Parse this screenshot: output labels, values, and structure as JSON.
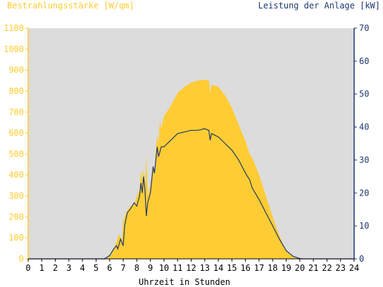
{
  "chart_data": {
    "type": "area",
    "xlabel": "Uhrzeit in Stunden",
    "x_ticks": [
      "0",
      "1",
      "2",
      "3",
      "4",
      "5",
      "6",
      "7",
      "8",
      "9",
      "10",
      "11",
      "12",
      "13",
      "14",
      "15",
      "16",
      "17",
      "18",
      "19",
      "20",
      "21",
      "22",
      "23",
      "24"
    ],
    "xlim": [
      0,
      24
    ],
    "left_axis": {
      "label": "Bestrahlungsstärke [W/qm]",
      "ticks": [
        "0",
        "100",
        "200",
        "300",
        "400",
        "500",
        "600",
        "700",
        "800",
        "900",
        "1000",
        "1100"
      ],
      "ylim": [
        0,
        1100
      ],
      "color": "#ffcc33"
    },
    "right_axis": {
      "label": "Leistung der Anlage [kW]",
      "ticks": [
        "0",
        "10",
        "20",
        "30",
        "40",
        "50",
        "60",
        "70"
      ],
      "ylim": [
        0,
        70
      ],
      "color": "#1f3870"
    },
    "plot_background": "#dcdcdc",
    "series": [
      {
        "axis": "left",
        "render": "area",
        "color": "#ffcc33",
        "points": [
          [
            0,
            0
          ],
          [
            5.5,
            0
          ],
          [
            5.8,
            3
          ],
          [
            6.0,
            15
          ],
          [
            6.3,
            50
          ],
          [
            6.5,
            80
          ],
          [
            6.7,
            120
          ],
          [
            6.9,
            90
          ],
          [
            7.0,
            180
          ],
          [
            7.2,
            220
          ],
          [
            7.5,
            250
          ],
          [
            7.8,
            260
          ],
          [
            8.0,
            300
          ],
          [
            8.2,
            330
          ],
          [
            8.3,
            420
          ],
          [
            8.4,
            380
          ],
          [
            8.5,
            430
          ],
          [
            8.6,
            350
          ],
          [
            8.7,
            500
          ],
          [
            8.8,
            300
          ],
          [
            9.0,
            350
          ],
          [
            9.2,
            450
          ],
          [
            9.3,
            400
          ],
          [
            9.4,
            520
          ],
          [
            9.5,
            590
          ],
          [
            9.6,
            550
          ],
          [
            9.7,
            660
          ],
          [
            9.8,
            620
          ],
          [
            10.0,
            680
          ],
          [
            10.2,
            700
          ],
          [
            10.5,
            730
          ],
          [
            11.0,
            790
          ],
          [
            11.5,
            820
          ],
          [
            12.0,
            840
          ],
          [
            12.5,
            850
          ],
          [
            13.0,
            855
          ],
          [
            13.3,
            850
          ],
          [
            13.4,
            790
          ],
          [
            13.5,
            830
          ],
          [
            14.0,
            820
          ],
          [
            14.5,
            780
          ],
          [
            15.0,
            720
          ],
          [
            15.5,
            640
          ],
          [
            16.0,
            560
          ],
          [
            16.3,
            500
          ],
          [
            16.5,
            480
          ],
          [
            17.0,
            400
          ],
          [
            17.5,
            300
          ],
          [
            18.0,
            200
          ],
          [
            18.5,
            110
          ],
          [
            19.0,
            40
          ],
          [
            19.5,
            10
          ],
          [
            20.0,
            2
          ],
          [
            20.3,
            0
          ],
          [
            24,
            0
          ]
        ]
      },
      {
        "axis": "right",
        "render": "line",
        "color": "#1f3870",
        "points": [
          [
            0,
            0
          ],
          [
            5.6,
            0
          ],
          [
            6.0,
            1
          ],
          [
            6.3,
            3
          ],
          [
            6.5,
            4
          ],
          [
            6.6,
            3
          ],
          [
            6.8,
            6
          ],
          [
            7.0,
            4
          ],
          [
            7.1,
            10
          ],
          [
            7.3,
            14
          ],
          [
            7.5,
            15
          ],
          [
            7.8,
            17
          ],
          [
            8.0,
            16
          ],
          [
            8.2,
            19
          ],
          [
            8.3,
            23
          ],
          [
            8.4,
            20
          ],
          [
            8.5,
            25
          ],
          [
            8.6,
            21
          ],
          [
            8.7,
            13
          ],
          [
            8.8,
            17
          ],
          [
            9.0,
            20
          ],
          [
            9.2,
            28
          ],
          [
            9.3,
            26
          ],
          [
            9.5,
            34
          ],
          [
            9.6,
            31
          ],
          [
            9.8,
            34
          ],
          [
            10.0,
            34
          ],
          [
            10.5,
            36
          ],
          [
            11.0,
            38
          ],
          [
            11.5,
            38.5
          ],
          [
            12.0,
            39
          ],
          [
            12.5,
            39
          ],
          [
            13.0,
            39.5
          ],
          [
            13.3,
            39
          ],
          [
            13.4,
            36
          ],
          [
            13.5,
            38
          ],
          [
            14.0,
            37
          ],
          [
            14.5,
            35
          ],
          [
            15.0,
            33
          ],
          [
            15.5,
            30
          ],
          [
            16.0,
            26
          ],
          [
            16.3,
            24
          ],
          [
            16.5,
            21.5
          ],
          [
            17.0,
            18
          ],
          [
            17.5,
            14
          ],
          [
            18.0,
            10
          ],
          [
            18.5,
            6
          ],
          [
            19.0,
            2.5
          ],
          [
            19.5,
            0.8
          ],
          [
            20.0,
            0.1
          ],
          [
            20.3,
            0
          ],
          [
            24,
            0
          ]
        ]
      }
    ]
  }
}
